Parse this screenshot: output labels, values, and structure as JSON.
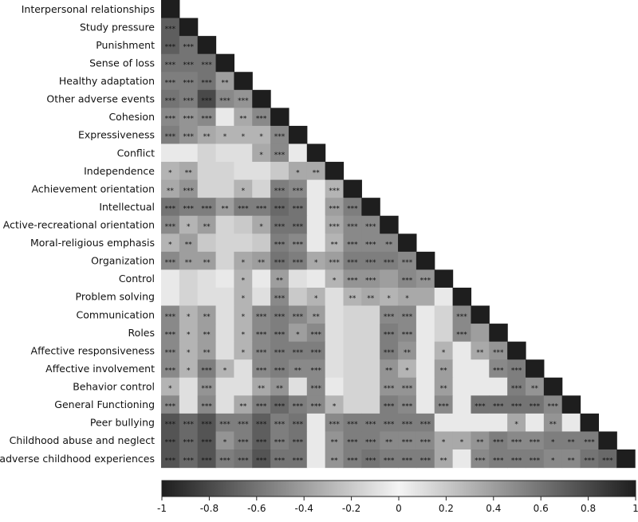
{
  "chart_data": {
    "type": "heatmap",
    "title": "",
    "xlabel": "",
    "ylabel": "",
    "variables": [
      "Interpersonal relationships",
      "Study pressure",
      "Punishment",
      "Sense of loss",
      "Healthy adaptation",
      "Other adverse events",
      "Cohesion",
      "Expressiveness",
      "Conflict",
      "Independence",
      "Achievement orientation",
      "Intellectual",
      "Active-recreational orientation",
      "Moral-religious emphasis",
      "Organization",
      "Control",
      "Problem solving",
      "Communication",
      "Roles",
      "Affective responsiveness",
      "Affective involvement",
      "Behavior control",
      "General Functioning",
      "Peer bullying",
      "Childhood abuse and neglect",
      "adverse childhood experiences"
    ],
    "colorbar": {
      "range": [
        -1,
        1
      ],
      "ticks": [
        -1,
        -0.8,
        -0.6,
        -0.4,
        -0.2,
        0,
        0.2,
        0.4,
        0.6,
        0.8,
        1
      ],
      "tick_labels": [
        "-1",
        "-0.8",
        "-0.6",
        "-0.4",
        "-0.2",
        "0",
        "0.2",
        "0.4",
        "0.6",
        "0.8",
        "1"
      ],
      "colors": [
        "#1e1e1e",
        "#f4f4f4",
        "#1e1e1e"
      ]
    },
    "cell_values": [
      [],
      [
        -0.7
      ],
      [
        -0.7,
        -0.6
      ],
      [
        -0.6,
        -0.6,
        -0.6
      ],
      [
        -0.55,
        -0.55,
        -0.6,
        -0.4
      ],
      [
        -0.6,
        -0.55,
        -0.8,
        -0.5,
        -0.45
      ],
      [
        -0.5,
        -0.45,
        -0.5,
        -0.05,
        -0.35,
        -0.5
      ],
      [
        -0.55,
        -0.45,
        -0.35,
        -0.3,
        -0.3,
        -0.3,
        -0.5
      ],
      [
        -0.05,
        -0.05,
        -0.15,
        -0.1,
        -0.1,
        -0.35,
        -0.5,
        -0.05
      ],
      [
        -0.3,
        -0.35,
        -0.15,
        -0.15,
        -0.1,
        -0.1,
        -0.2,
        -0.35,
        -0.35
      ],
      [
        -0.35,
        -0.45,
        -0.15,
        -0.15,
        -0.3,
        -0.15,
        -0.55,
        -0.5,
        -0.05,
        -0.3
      ],
      [
        -0.6,
        -0.55,
        -0.55,
        -0.4,
        -0.55,
        -0.55,
        -0.65,
        -0.6,
        -0.05,
        -0.4,
        -0.55
      ],
      [
        -0.5,
        -0.3,
        -0.4,
        -0.15,
        -0.2,
        -0.35,
        -0.6,
        -0.6,
        -0.05,
        -0.35,
        -0.5,
        -0.5
      ],
      [
        -0.3,
        -0.4,
        -0.2,
        -0.15,
        -0.15,
        -0.2,
        -0.55,
        -0.5,
        -0.05,
        -0.3,
        -0.5,
        -0.5,
        -0.5
      ],
      [
        -0.5,
        -0.4,
        -0.4,
        -0.15,
        -0.35,
        -0.4,
        -0.6,
        -0.55,
        -0.35,
        -0.4,
        -0.55,
        -0.55,
        -0.55,
        -0.5
      ],
      [
        -0.05,
        -0.15,
        -0.1,
        -0.05,
        -0.3,
        -0.05,
        -0.4,
        -0.1,
        -0.05,
        -0.3,
        -0.45,
        -0.45,
        -0.4,
        -0.5,
        -0.45
      ],
      [
        -0.05,
        -0.15,
        -0.1,
        -0.1,
        -0.3,
        -0.1,
        -0.5,
        -0.2,
        -0.3,
        -0.1,
        -0.3,
        -0.35,
        -0.3,
        -0.35,
        -0.35,
        -0.05
      ],
      [
        -0.5,
        -0.3,
        -0.4,
        -0.1,
        -0.3,
        -0.5,
        -0.55,
        -0.5,
        -0.4,
        -0.1,
        -0.15,
        -0.15,
        -0.5,
        -0.5,
        -0.05,
        -0.15,
        -0.5
      ],
      [
        -0.5,
        -0.3,
        -0.4,
        -0.1,
        -0.3,
        -0.5,
        -0.55,
        -0.4,
        -0.5,
        -0.1,
        -0.15,
        -0.15,
        -0.55,
        -0.5,
        -0.05,
        -0.15,
        -0.5,
        -0.4
      ],
      [
        -0.5,
        -0.3,
        -0.4,
        -0.1,
        -0.3,
        -0.5,
        -0.55,
        -0.55,
        -0.55,
        -0.1,
        -0.15,
        -0.15,
        -0.55,
        -0.45,
        -0.05,
        -0.3,
        -0.05,
        -0.35,
        -0.45
      ],
      [
        -0.5,
        -0.3,
        -0.55,
        -0.3,
        -0.1,
        -0.5,
        -0.55,
        -0.5,
        -0.5,
        -0.1,
        -0.15,
        -0.15,
        -0.45,
        -0.3,
        -0.05,
        -0.4,
        -0.05,
        -0.05,
        -0.5,
        -0.55
      ],
      [
        -0.3,
        -0.1,
        -0.45,
        -0.1,
        -0.1,
        -0.35,
        -0.45,
        -0.1,
        -0.5,
        -0.05,
        -0.15,
        -0.15,
        -0.45,
        -0.45,
        -0.05,
        -0.4,
        -0.05,
        -0.05,
        -0.05,
        -0.55,
        -0.45
      ],
      [
        -0.5,
        -0.1,
        -0.5,
        -0.1,
        -0.35,
        -0.55,
        -0.65,
        -0.55,
        -0.5,
        -0.3,
        -0.15,
        -0.15,
        -0.55,
        -0.5,
        -0.05,
        -0.5,
        -0.05,
        -0.6,
        -0.6,
        -0.6,
        -0.6,
        -0.5
      ],
      [
        -0.75,
        -0.65,
        -0.75,
        -0.55,
        -0.55,
        -0.7,
        -0.55,
        -0.6,
        -0.05,
        -0.5,
        -0.55,
        -0.55,
        -0.55,
        -0.55,
        -0.55,
        -0.05,
        -0.05,
        -0.05,
        -0.05,
        -0.35,
        -0.05,
        -0.45,
        -0.05
      ],
      [
        -0.75,
        -0.65,
        -0.75,
        -0.45,
        -0.55,
        -0.7,
        -0.55,
        -0.6,
        -0.05,
        -0.45,
        -0.55,
        -0.55,
        -0.5,
        -0.5,
        -0.5,
        -0.35,
        -0.35,
        -0.45,
        -0.55,
        -0.5,
        -0.5,
        -0.55,
        -0.55,
        -0.55
      ],
      [
        -0.75,
        -0.65,
        -0.75,
        -0.55,
        -0.6,
        -0.75,
        -0.6,
        -0.6,
        -0.05,
        -0.45,
        -0.55,
        -0.6,
        -0.55,
        -0.55,
        -0.55,
        -0.35,
        -0.05,
        -0.5,
        -0.55,
        -0.55,
        -0.55,
        -0.5,
        -0.5,
        -0.6,
        -0.65
      ]
    ],
    "significance": [
      [],
      [
        "***"
      ],
      [
        "***",
        "***"
      ],
      [
        "***",
        "***",
        "***"
      ],
      [
        "***",
        "***",
        "***",
        "**"
      ],
      [
        "***",
        "***",
        "***",
        "***",
        "***"
      ],
      [
        "***",
        "***",
        "***",
        "",
        "**",
        "***"
      ],
      [
        "***",
        "***",
        "**",
        "*",
        "*",
        "*",
        "***"
      ],
      [
        "",
        "",
        "",
        "",
        "",
        "*",
        "***",
        ""
      ],
      [
        "*",
        "**",
        "",
        "",
        "",
        "",
        "",
        "*",
        "**"
      ],
      [
        "**",
        "***",
        "",
        "",
        "*",
        "",
        "***",
        "***",
        "",
        "***"
      ],
      [
        "***",
        "***",
        "***",
        "**",
        "***",
        "***",
        "***",
        "***",
        "",
        "***",
        "***"
      ],
      [
        "***",
        "*",
        "**",
        "",
        "",
        "*",
        "***",
        "***",
        "",
        "***",
        "***",
        "***"
      ],
      [
        "*",
        "**",
        "",
        "",
        "",
        "",
        "***",
        "***",
        "",
        "**",
        "***",
        "***",
        "**"
      ],
      [
        "***",
        "**",
        "**",
        "",
        "*",
        "**",
        "***",
        "***",
        "*",
        "***",
        "***",
        "***",
        "***",
        "***"
      ],
      [
        "",
        "",
        "",
        "",
        "*",
        "",
        "**",
        "",
        "",
        "*",
        "***",
        "***",
        "",
        "***",
        "***"
      ],
      [
        "",
        "",
        "",
        "",
        "*",
        "",
        "***",
        "",
        "*",
        "",
        "**",
        "**",
        "*",
        "*",
        "",
        ""
      ],
      [
        "***",
        "*",
        "**",
        "",
        "*",
        "***",
        "***",
        "***",
        "**",
        "",
        "",
        "",
        "***",
        "***",
        "",
        "",
        "***"
      ],
      [
        "***",
        "*",
        "**",
        "",
        "*",
        "***",
        "***",
        "*",
        "***",
        "",
        "",
        "",
        "***",
        "***",
        "",
        "",
        "***",
        ""
      ],
      [
        "***",
        "*",
        "**",
        "",
        "*",
        "***",
        "***",
        "***",
        "***",
        "",
        "",
        "",
        "***",
        "**",
        "",
        "*",
        "",
        "**",
        "***"
      ],
      [
        "***",
        "*",
        "***",
        "*",
        "",
        "***",
        "***",
        "**",
        "***",
        "",
        "",
        "",
        "**",
        "*",
        "",
        "**",
        "",
        "",
        "***",
        "***"
      ],
      [
        "*",
        "",
        "***",
        "",
        "",
        "**",
        "**",
        "",
        "***",
        "",
        "",
        "",
        "***",
        "***",
        "",
        "**",
        "",
        "",
        "",
        "***",
        "**"
      ],
      [
        "***",
        "",
        "***",
        "",
        "**",
        "***",
        "***",
        "***",
        "***",
        "*",
        "",
        "",
        "***",
        "***",
        "",
        "***",
        "",
        "***",
        "***",
        "***",
        "***",
        "***"
      ],
      [
        "***",
        "***",
        "***",
        "***",
        "***",
        "***",
        "***",
        "***",
        "",
        "***",
        "***",
        "***",
        "***",
        "***",
        "***",
        "",
        "",
        "",
        "",
        "*",
        "",
        "**",
        ""
      ],
      [
        "***",
        "***",
        "***",
        "*",
        "***",
        "***",
        "***",
        "***",
        "",
        "**",
        "***",
        "***",
        "**",
        "***",
        "***",
        "*",
        "*",
        "**",
        "***",
        "***",
        "***",
        "*",
        "**",
        "***"
      ],
      [
        "***",
        "***",
        "***",
        "***",
        "***",
        "***",
        "***",
        "***",
        "",
        "**",
        "***",
        "***",
        "***",
        "***",
        "***",
        "**",
        "",
        "***",
        "***",
        "***",
        "***",
        "*",
        "**",
        "***",
        "***"
      ]
    ]
  }
}
